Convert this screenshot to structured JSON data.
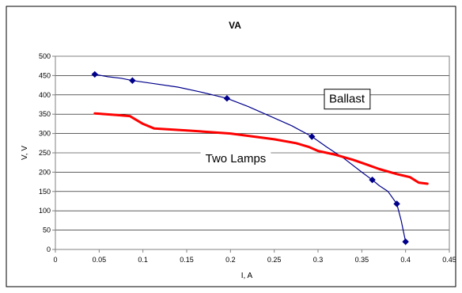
{
  "chart_data": {
    "type": "line",
    "title": "VA",
    "xlabel": "I, A",
    "ylabel": "V, V",
    "xlim": [
      0,
      0.45
    ],
    "ylim": [
      0,
      500
    ],
    "x_ticks": [
      "0",
      "0.05",
      "0.1",
      "0.15",
      "0.2",
      "0.25",
      "0.3",
      "0.35",
      "0.4",
      "0.45"
    ],
    "y_ticks": [
      "0",
      "50",
      "100",
      "150",
      "200",
      "250",
      "300",
      "350",
      "400",
      "450",
      "500"
    ],
    "grid": "horizontal",
    "series": [
      {
        "name": "Ballast",
        "color": "#00008b",
        "marker": "diamond",
        "x": [
          0.045,
          0.06,
          0.075,
          0.088,
          0.11,
          0.14,
          0.165,
          0.196,
          0.22,
          0.245,
          0.27,
          0.293,
          0.31,
          0.33,
          0.35,
          0.362,
          0.37,
          0.38,
          0.39,
          0.395,
          0.4
        ],
        "y": [
          453,
          447,
          443,
          437,
          430,
          420,
          408,
          391,
          370,
          345,
          320,
          292,
          265,
          235,
          200,
          180,
          165,
          150,
          118,
          75,
          20
        ],
        "markers": [
          {
            "x": 0.045,
            "y": 453
          },
          {
            "x": 0.088,
            "y": 437
          },
          {
            "x": 0.196,
            "y": 391
          },
          {
            "x": 0.293,
            "y": 292
          },
          {
            "x": 0.362,
            "y": 180
          },
          {
            "x": 0.39,
            "y": 118
          },
          {
            "x": 0.4,
            "y": 20
          }
        ]
      },
      {
        "name": "Two Lamps",
        "color": "#ff0000",
        "marker": "none",
        "x": [
          0.045,
          0.07,
          0.085,
          0.1,
          0.113,
          0.15,
          0.2,
          0.25,
          0.275,
          0.29,
          0.3,
          0.32,
          0.34,
          0.355,
          0.37,
          0.39,
          0.405,
          0.415,
          0.425
        ],
        "y": [
          352,
          348,
          345,
          325,
          313,
          308,
          300,
          285,
          275,
          265,
          255,
          245,
          232,
          220,
          208,
          195,
          187,
          173,
          170
        ]
      }
    ],
    "annotations": [
      {
        "text": "Ballast",
        "x": 0.333,
        "y": 390
      },
      {
        "text": "Two Lamps",
        "x": 0.206,
        "y": 236
      }
    ]
  }
}
